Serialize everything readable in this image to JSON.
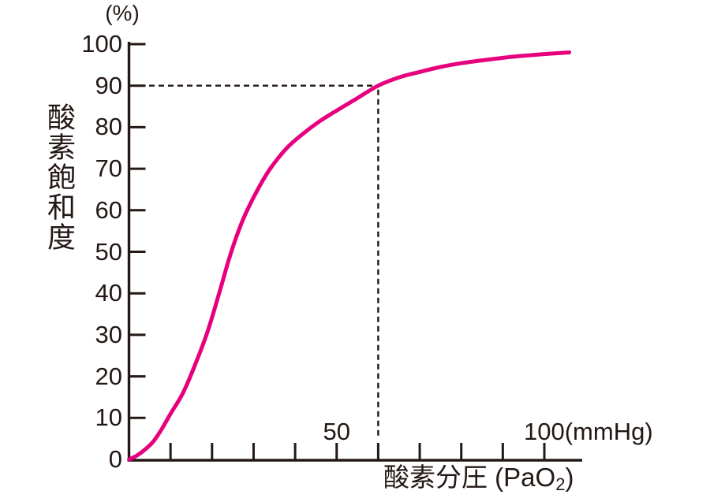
{
  "colors": {
    "background": "#ffffff",
    "ink": "#231815",
    "curve": "#e6007e"
  },
  "y_axis": {
    "unit_label": "(%)",
    "title": "酸素飽和度",
    "tick_values": [
      100,
      90,
      80,
      70,
      60,
      50,
      40,
      30,
      20,
      10,
      0
    ],
    "tick_labels": [
      "100",
      "90",
      "80",
      "70",
      "60",
      "50",
      "40",
      "30",
      "20",
      "10",
      "0"
    ]
  },
  "x_axis": {
    "unit_label": "(mmHg)",
    "title": {
      "prefix": "酸素分圧 (PaO",
      "subscript": "2",
      "suffix": ")"
    },
    "tick_values": [
      10,
      20,
      30,
      40,
      50,
      60,
      70,
      80,
      90,
      100
    ],
    "labeled_ticks": [
      {
        "value": 50,
        "label": "50"
      },
      {
        "value": 100,
        "label": "100"
      }
    ]
  },
  "chart_data": {
    "type": "line",
    "xlabel": "酸素分圧 (PaO2)",
    "ylabel": "酸素飽和度",
    "x_unit": "mmHg",
    "y_unit": "%",
    "xlim": [
      0,
      109
    ],
    "ylim": [
      0,
      100
    ],
    "grid": false,
    "x_tick_step": 10,
    "y_tick_step": 10,
    "series": [
      {
        "name": "curve",
        "color": "#e6007e",
        "points": [
          [
            0,
            0
          ],
          [
            2,
            1
          ],
          [
            4,
            2.5
          ],
          [
            6,
            4.5
          ],
          [
            8,
            7.5
          ],
          [
            10,
            11
          ],
          [
            13,
            16
          ],
          [
            16,
            23
          ],
          [
            19,
            31
          ],
          [
            22,
            41
          ],
          [
            24,
            48
          ],
          [
            26,
            54
          ],
          [
            28,
            59
          ],
          [
            31,
            65
          ],
          [
            34,
            70
          ],
          [
            38,
            75
          ],
          [
            42,
            78.5
          ],
          [
            46,
            81.5
          ],
          [
            50,
            84
          ],
          [
            55,
            87
          ],
          [
            60,
            90
          ],
          [
            65,
            92
          ],
          [
            70,
            93.3
          ],
          [
            75,
            94.5
          ],
          [
            80,
            95.4
          ],
          [
            85,
            96.1
          ],
          [
            90,
            96.7
          ],
          [
            95,
            97.2
          ],
          [
            100,
            97.6
          ],
          [
            106,
            98
          ]
        ]
      }
    ],
    "annotations": [
      {
        "type": "dashed-crosshair",
        "x": 60,
        "y": 90
      }
    ]
  }
}
